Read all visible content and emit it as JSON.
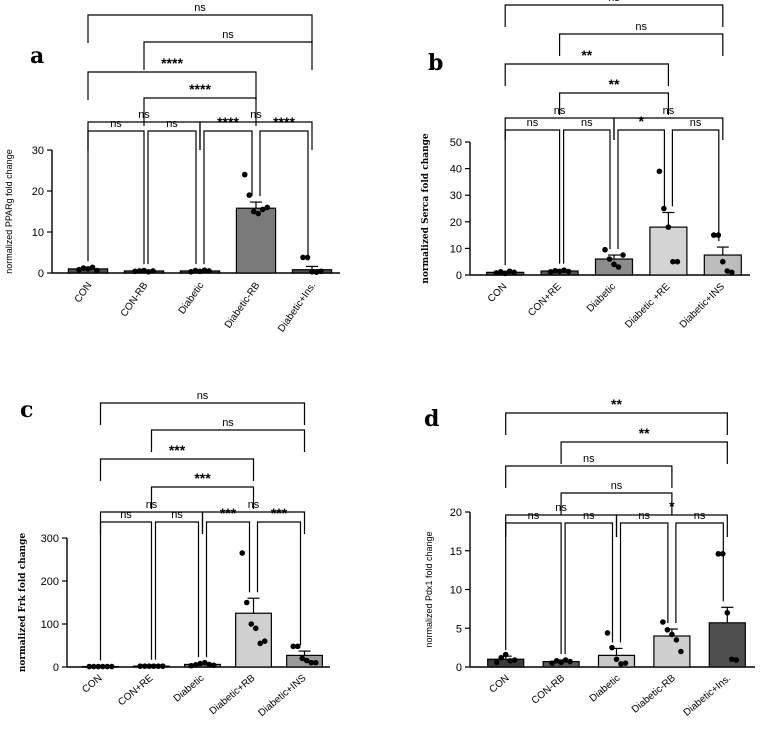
{
  "chart_data": [
    {
      "panel": "a",
      "type": "bar",
      "ylabel": "normalized PPARg fold change",
      "ylim": [
        0,
        30
      ],
      "yticks": [
        0,
        10,
        20,
        30
      ],
      "categories": [
        "CON",
        "CON-RB",
        "Diabetic",
        "Diabetic-RB",
        "Diabetic+Ins."
      ],
      "values": [
        1.0,
        0.5,
        0.5,
        15.8,
        0.8
      ],
      "errors": [
        0.4,
        0.2,
        0.2,
        1.5,
        0.8
      ],
      "bar_colors": [
        "#4d4d4d",
        "#4d4d4d",
        "#4d4d4d",
        "#7a7a7a",
        "#4d4d4d"
      ],
      "points": [
        [
          0.8,
          1.2,
          1.0,
          1.4,
          0.6
        ],
        [
          0.4,
          0.5,
          0.6,
          0.3,
          0.5
        ],
        [
          0.3,
          0.6,
          0.4,
          0.7,
          0.5
        ],
        [
          24.0,
          19.0,
          15.0,
          14.5,
          15.5,
          16.0
        ],
        [
          3.8,
          3.8,
          0.3,
          0.2,
          0.4
        ]
      ],
      "comparisons": [
        {
          "from": 0,
          "to": 4,
          "label": "ns"
        },
        {
          "from": 1,
          "to": 4,
          "label": "ns"
        },
        {
          "from": 0,
          "to": 3,
          "label": "****"
        },
        {
          "from": 1,
          "to": 3,
          "label": "****"
        },
        {
          "from": 0,
          "to": 2,
          "label": "ns"
        },
        {
          "from": 2,
          "to": 4,
          "label": "ns"
        },
        {
          "from": 0,
          "to": 1,
          "label": "ns"
        },
        {
          "from": 1,
          "to": 2,
          "label": "ns"
        },
        {
          "from": 2,
          "to": 3,
          "label": "****"
        },
        {
          "from": 3,
          "to": 4,
          "label": "****"
        }
      ]
    },
    {
      "panel": "b",
      "type": "bar",
      "ylabel": "normalized Serca fold change",
      "ylim": [
        0,
        50
      ],
      "yticks": [
        0,
        10,
        20,
        30,
        40,
        50
      ],
      "categories": [
        "CON",
        "CON+RE",
        "Diabetic",
        "Diabetic +RE",
        "Diabetic+INS"
      ],
      "values": [
        1.0,
        1.5,
        6.0,
        18.0,
        7.5
      ],
      "errors": [
        0.4,
        0.5,
        1.5,
        5.5,
        3.0
      ],
      "bar_colors": [
        "#555555",
        "#555555",
        "#8c8c8c",
        "#d4d4d4",
        "#bdbdbd"
      ],
      "points": [
        [
          0.8,
          1.2,
          0.6,
          1.4,
          1.0
        ],
        [
          1.2,
          1.6,
          1.4,
          1.8,
          1.3
        ],
        [
          9.5,
          6.0,
          4.0,
          3.0,
          7.5
        ],
        [
          39.0,
          25.0,
          18.0,
          5.0,
          5.0
        ],
        [
          15.0,
          15.0,
          5.0,
          1.5,
          1.0
        ]
      ],
      "comparisons": [
        {
          "from": 0,
          "to": 4,
          "label": "ns"
        },
        {
          "from": 1,
          "to": 4,
          "label": "ns"
        },
        {
          "from": 0,
          "to": 3,
          "label": "**"
        },
        {
          "from": 1,
          "to": 3,
          "label": "**"
        },
        {
          "from": 0,
          "to": 2,
          "label": "ns"
        },
        {
          "from": 2,
          "to": 4,
          "label": "ns"
        },
        {
          "from": 0,
          "to": 1,
          "label": "ns"
        },
        {
          "from": 1,
          "to": 2,
          "label": "ns"
        },
        {
          "from": 2,
          "to": 3,
          "label": "*"
        },
        {
          "from": 3,
          "to": 4,
          "label": "ns"
        }
      ]
    },
    {
      "panel": "c",
      "type": "bar",
      "ylabel": "normalized Frk fold change",
      "ylim": [
        0,
        300
      ],
      "yticks": [
        0,
        100,
        200,
        300
      ],
      "categories": [
        "CON",
        "CON+RE",
        "Diabetic",
        "Diabetic+RB",
        "Diabetic+INS"
      ],
      "values": [
        1,
        2,
        6,
        125,
        27
      ],
      "errors": [
        0.5,
        1,
        3,
        35,
        10
      ],
      "bar_colors": [
        "#4d4d4d",
        "#4d4d4d",
        "#7a7a7a",
        "#d0d0d0",
        "#9a9a9a"
      ],
      "points": [
        [
          1,
          1,
          1,
          1,
          1,
          1
        ],
        [
          2,
          2,
          2,
          2,
          2,
          2
        ],
        [
          3,
          5,
          8,
          10,
          6,
          4
        ],
        [
          265,
          150,
          100,
          90,
          55,
          60
        ],
        [
          48,
          48,
          20,
          15,
          10,
          10
        ]
      ],
      "comparisons": [
        {
          "from": 0,
          "to": 4,
          "label": "ns"
        },
        {
          "from": 1,
          "to": 4,
          "label": "ns"
        },
        {
          "from": 0,
          "to": 3,
          "label": "***"
        },
        {
          "from": 1,
          "to": 3,
          "label": "***"
        },
        {
          "from": 0,
          "to": 2,
          "label": "ns"
        },
        {
          "from": 2,
          "to": 4,
          "label": "ns"
        },
        {
          "from": 0,
          "to": 1,
          "label": "ns"
        },
        {
          "from": 1,
          "to": 2,
          "label": "ns"
        },
        {
          "from": 2,
          "to": 3,
          "label": "***"
        },
        {
          "from": 3,
          "to": 4,
          "label": "***"
        }
      ]
    },
    {
      "panel": "d",
      "type": "bar",
      "ylabel": "normalized Pdx1 fold change",
      "ylim": [
        0,
        20
      ],
      "yticks": [
        0,
        5,
        10,
        15,
        20
      ],
      "categories": [
        "CON",
        "CON-RB",
        "Diabetic",
        "Diabetic-RB",
        "Diabetic+Ins."
      ],
      "values": [
        1.0,
        0.7,
        1.5,
        4.0,
        5.7
      ],
      "errors": [
        0.4,
        0.2,
        0.9,
        0.9,
        2.0
      ],
      "bar_colors": [
        "#3d3d3d",
        "#5a5a5a",
        "#c8c8c8",
        "#cfcfcf",
        "#4f4f4f"
      ],
      "points": [
        [
          0.6,
          1.2,
          1.6,
          0.8,
          0.9
        ],
        [
          0.5,
          0.8,
          0.6,
          0.9,
          0.7
        ],
        [
          4.4,
          2.5,
          1.0,
          0.4,
          0.5
        ],
        [
          5.8,
          4.8,
          4.2,
          3.5,
          2.0
        ],
        [
          14.6,
          14.6,
          7.0,
          1.0,
          0.9
        ]
      ],
      "comparisons": [
        {
          "from": 0,
          "to": 4,
          "label": "**"
        },
        {
          "from": 1,
          "to": 4,
          "label": "**"
        },
        {
          "from": 0,
          "to": 3,
          "label": "ns"
        },
        {
          "from": 1,
          "to": 3,
          "label": "ns"
        },
        {
          "from": 0,
          "to": 2,
          "label": "ns"
        },
        {
          "from": 2,
          "to": 4,
          "label": "*"
        },
        {
          "from": 0,
          "to": 1,
          "label": "ns"
        },
        {
          "from": 1,
          "to": 2,
          "label": "ns"
        },
        {
          "from": 2,
          "to": 3,
          "label": "ns"
        },
        {
          "from": 3,
          "to": 4,
          "label": "ns"
        }
      ]
    }
  ]
}
